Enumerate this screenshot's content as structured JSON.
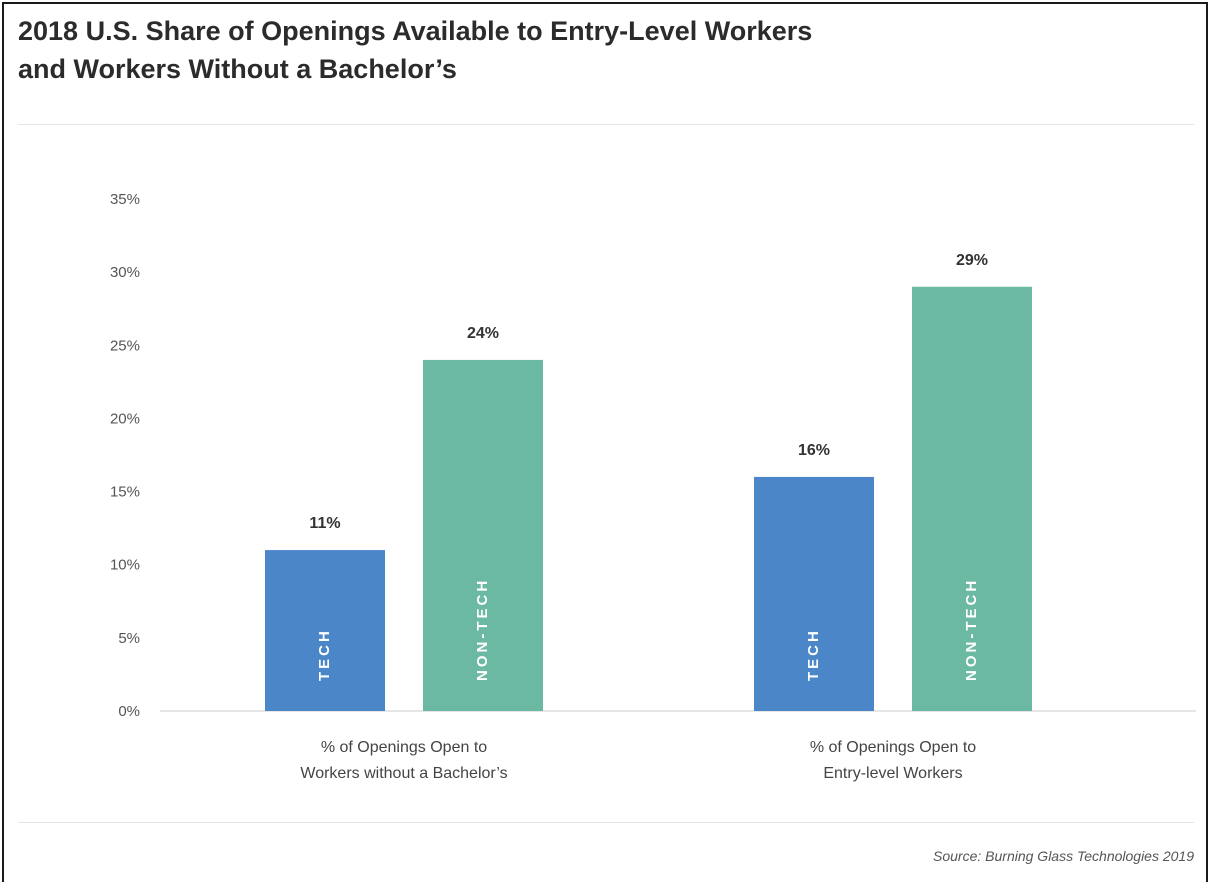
{
  "title_line1": "2018 U.S. Share of Openings Available to Entry-Level Workers",
  "title_line2": "and Workers Without a Bachelor’s",
  "source": "Source: Burning Glass Technologies 2019",
  "colors": {
    "tech": "#4a86c8",
    "non_tech": "#6bb9a2",
    "axis": "#cccccc"
  },
  "chart_data": {
    "type": "bar",
    "title": "2018 U.S. Share of Openings Available to Entry-Level Workers and Workers Without a Bachelor’s",
    "xlabel": "",
    "ylabel": "",
    "ylim": [
      0,
      35
    ],
    "yticks": [
      0,
      5,
      10,
      15,
      20,
      25,
      30,
      35
    ],
    "ytick_labels": [
      "0%",
      "5%",
      "10%",
      "15%",
      "20%",
      "25%",
      "30%",
      "35%"
    ],
    "grid": false,
    "legend": "none (series labels printed inside bars)",
    "categories": [
      [
        "% of Openings Open to",
        "Workers without a Bachelor’s"
      ],
      [
        "% of Openings Open to",
        "Entry-level Workers"
      ]
    ],
    "series": [
      {
        "name": "TECH",
        "values": [
          11,
          16
        ],
        "labels": [
          "11%",
          "16%"
        ]
      },
      {
        "name": "NON-TECH",
        "values": [
          24,
          29
        ],
        "labels": [
          "24%",
          "29%"
        ]
      }
    ]
  }
}
